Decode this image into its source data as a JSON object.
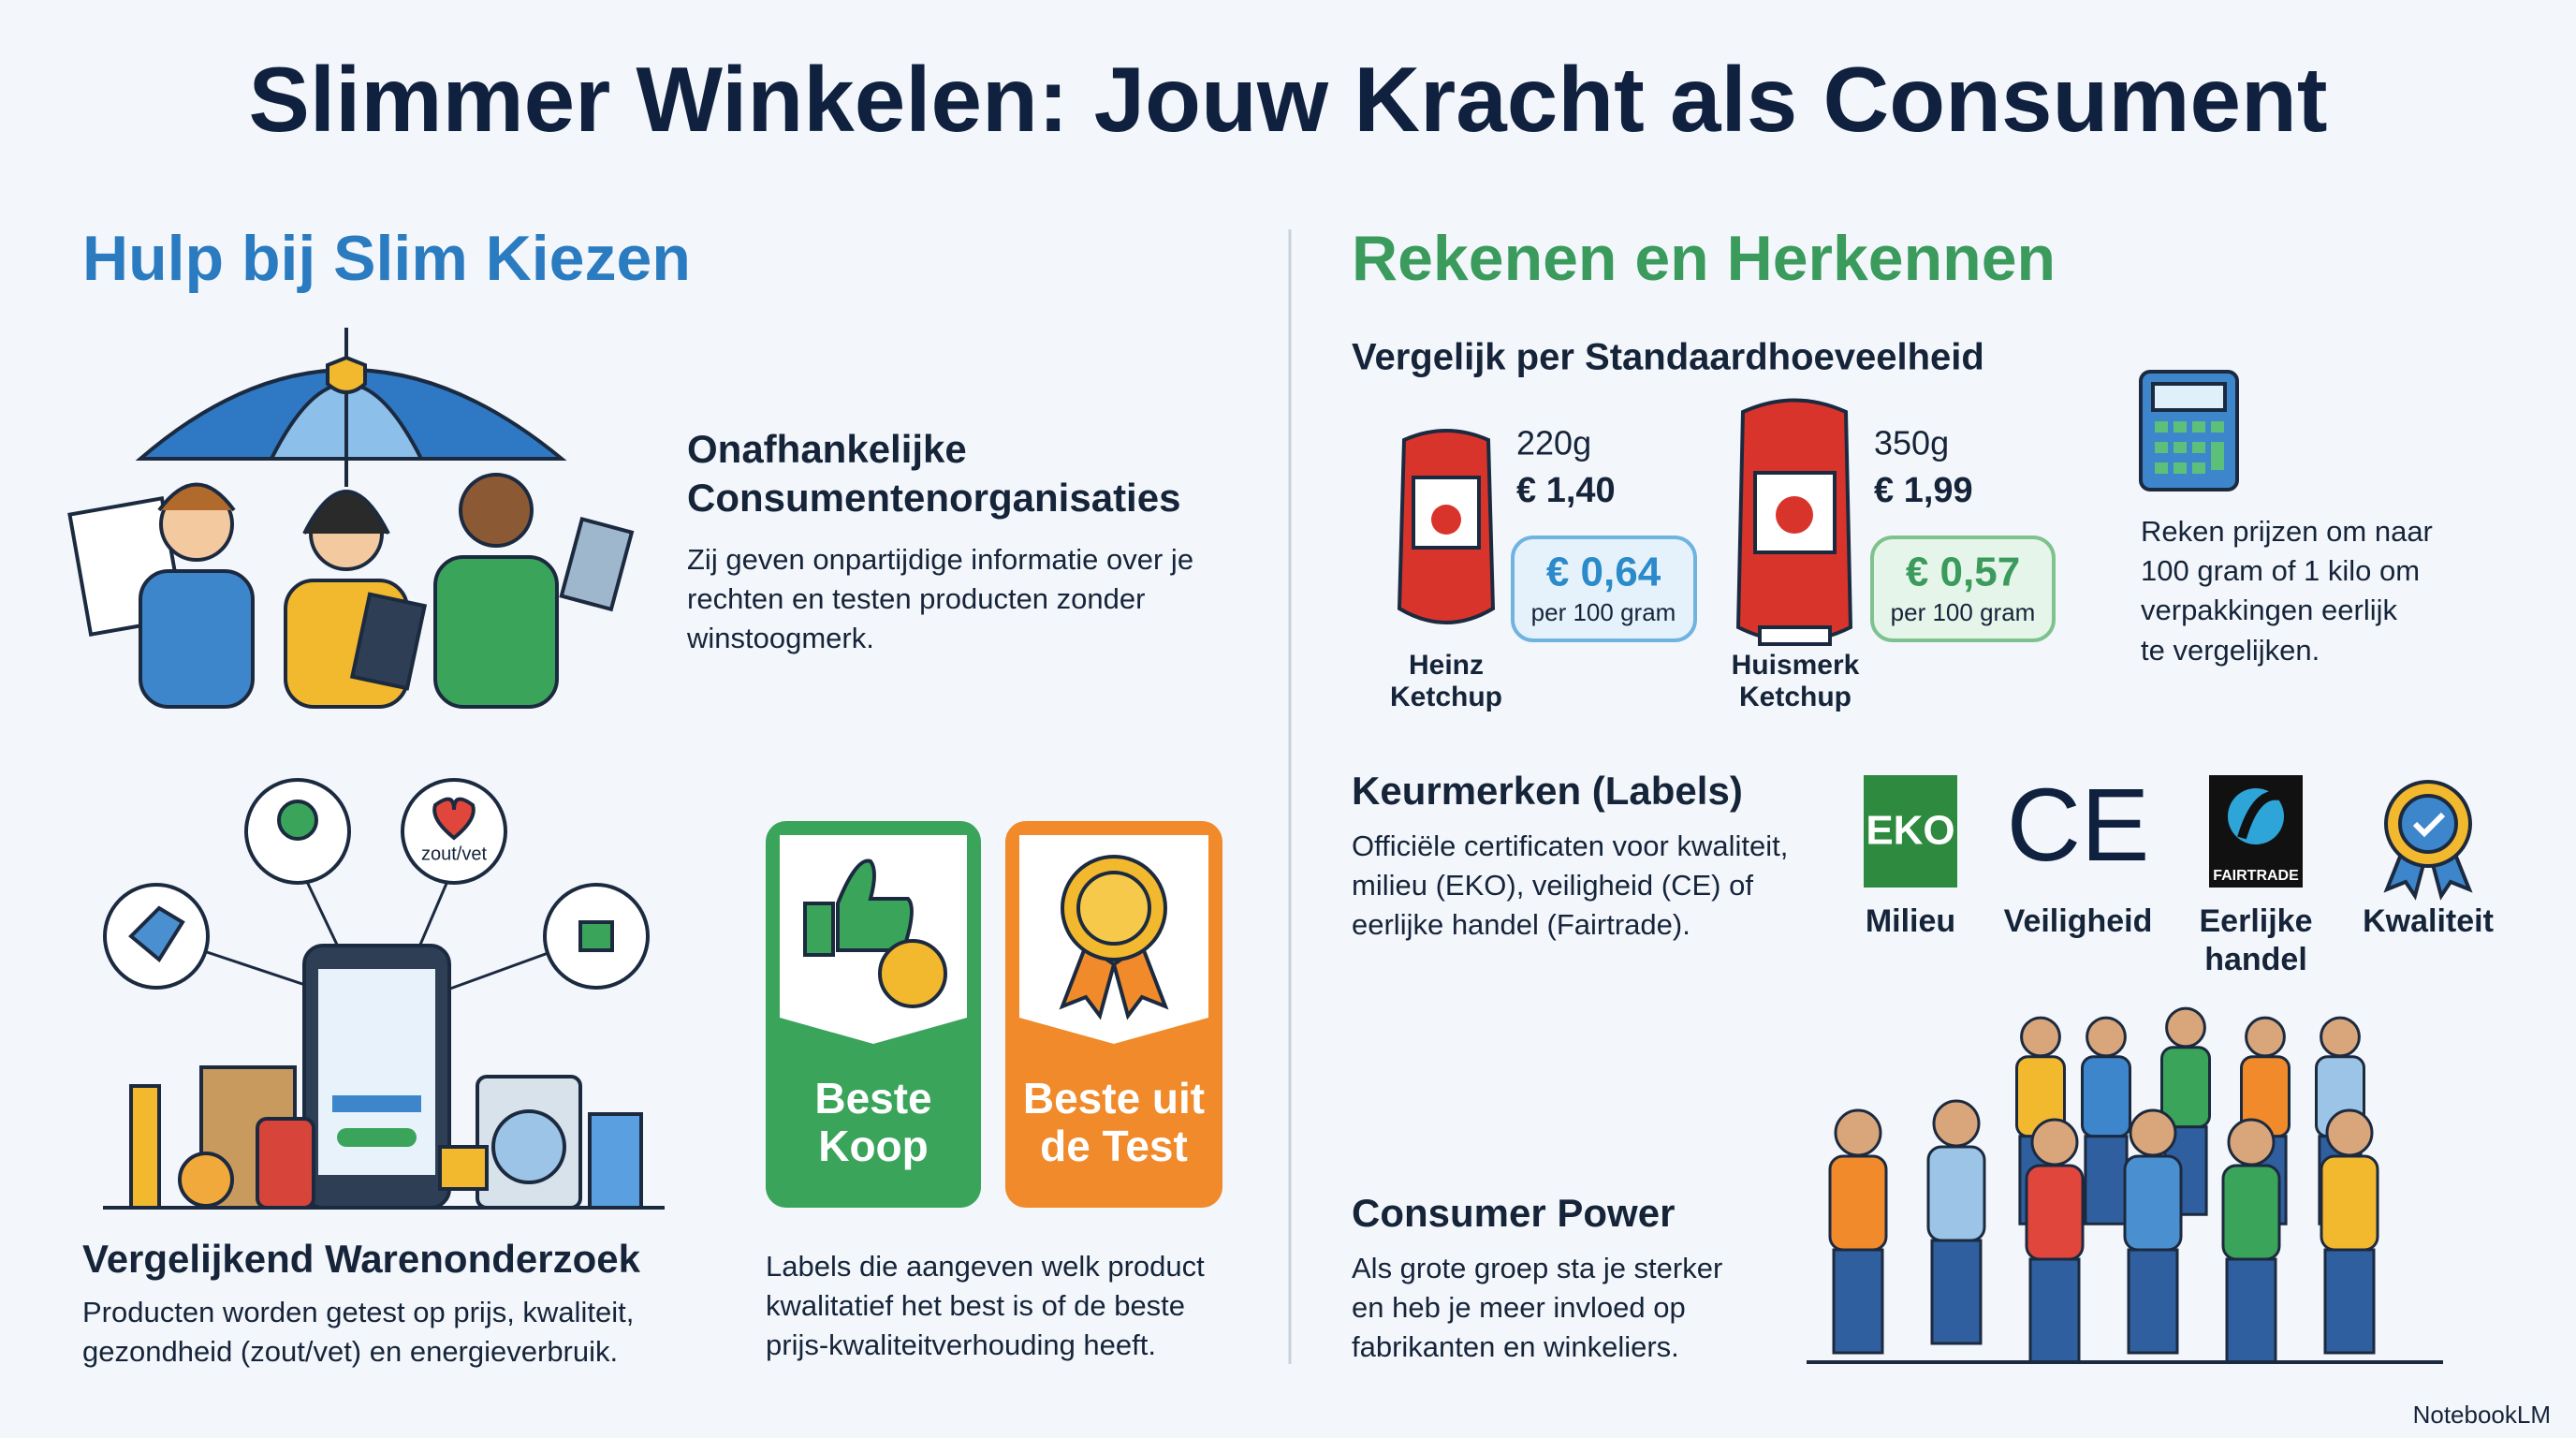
{
  "title": "Slimmer Winkelen: Jouw Kracht als Consument",
  "left": {
    "heading": "Hulp bij Slim Kiezen",
    "organizations": {
      "title": [
        "Onafhankelijke",
        "Consumentenorganisaties"
      ],
      "text": [
        "Zij geven onpartijdige informatie over je",
        "rechten en testen producten zonder",
        "winstoogmerk."
      ]
    },
    "comparison": {
      "icon_label": "zout/vet",
      "title": "Vergelijkend Warenonderzoek",
      "text": [
        "Producten worden getest op prijs, kwaliteit,",
        "gezondheid (zout/vet) en energieverbruik."
      ]
    },
    "badges": [
      {
        "label": [
          "Beste",
          "Koop"
        ]
      },
      {
        "label": [
          "Beste uit",
          "de Test"
        ]
      }
    ],
    "badges_text": [
      "Labels die aangeven welk product",
      "kwalitatief het best is of de beste",
      "prijs-kwaliteitverhouding heeft."
    ]
  },
  "right": {
    "heading": "Rekenen en Herkennen",
    "unit_price": {
      "title": "Vergelijk per Standaardhoeveelheid",
      "products": [
        {
          "weight": "220g",
          "price": "€ 1,40",
          "unit_price": "€ 0,64",
          "unit": "per 100 gram",
          "name": [
            "Heinz",
            "Ketchup"
          ]
        },
        {
          "weight": "350g",
          "price": "€ 1,99",
          "unit_price": "€ 0,57",
          "unit": "per 100 gram",
          "name": [
            "Huismerk",
            "Ketchup"
          ]
        }
      ],
      "text": [
        "Reken prijzen om naar",
        "100 gram of 1 kilo om",
        "verpakkingen eerlijk",
        "te vergelijken."
      ]
    },
    "labels": {
      "title": "Keurmerken (Labels)",
      "text": [
        "Officiële certificaten voor kwaliteit,",
        "milieu (EKO), veiligheid (CE) of",
        "eerlijke handel (Fairtrade)."
      ],
      "items": [
        {
          "icon_text": "EKO",
          "name": [
            "Milieu"
          ]
        },
        {
          "icon_text": "CE",
          "name": [
            "Veiligheid"
          ]
        },
        {
          "icon_text": "FAIRTRADE",
          "name": [
            "Eerlijke",
            "handel"
          ]
        },
        {
          "name": [
            "Kwaliteit"
          ]
        }
      ]
    },
    "power": {
      "title": "Consumer Power",
      "text": [
        "Als grote groep sta je sterker",
        "en heb je meer invloed op",
        "fabrikanten en winkeliers."
      ]
    }
  },
  "footer": "NotebookLM"
}
